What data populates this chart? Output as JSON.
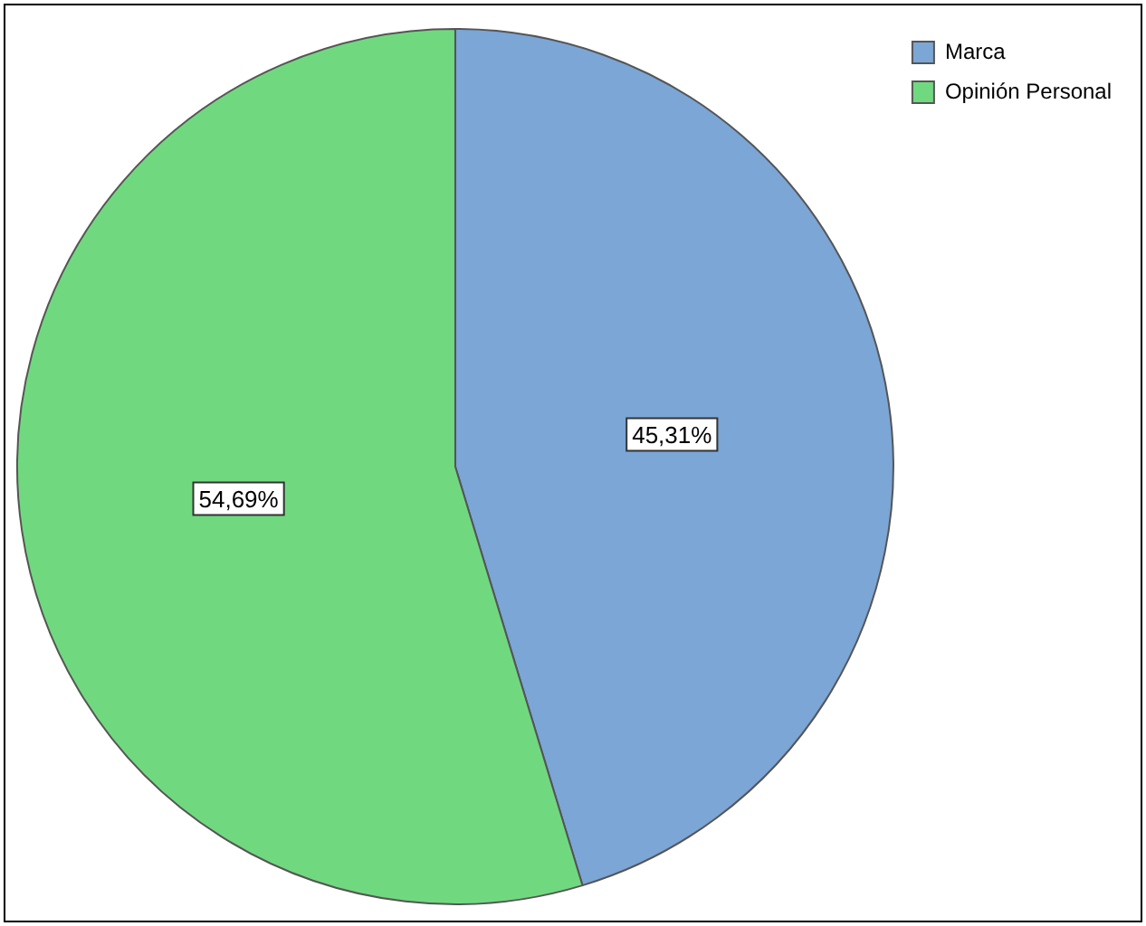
{
  "chart_data": {
    "type": "pie",
    "categories": [
      "Marca",
      "Opinión Personal"
    ],
    "values": [
      45.31,
      54.69
    ],
    "colors": [
      "#7ba6d6",
      "#70d97f"
    ],
    "value_labels": [
      "45,31%",
      "54,69%"
    ],
    "legend": "top right"
  }
}
